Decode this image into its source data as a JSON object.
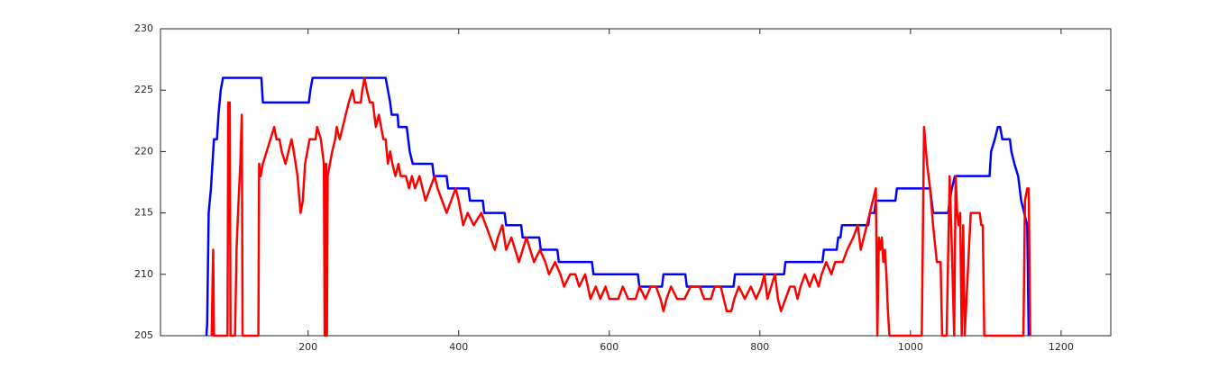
{
  "chart_data": {
    "type": "line",
    "xlim": [
      4,
      1266
    ],
    "ylim": [
      205,
      230
    ],
    "xticks": [
      200,
      400,
      600,
      800,
      1000,
      1200
    ],
    "yticks": [
      205,
      210,
      215,
      220,
      225,
      230
    ],
    "grid": false,
    "series": [
      {
        "color": "#0000ff",
        "x": [
          65,
          66,
          68,
          71,
          74,
          75,
          79,
          81,
          84,
          87,
          138,
          140,
          201,
          203,
          206,
          303,
          306,
          309,
          311,
          319,
          320,
          331,
          333,
          335,
          339,
          365,
          367,
          384,
          386,
          413,
          415,
          432,
          434,
          461,
          463,
          483,
          485,
          507,
          509,
          531,
          533,
          577,
          579,
          638,
          640,
          670,
          672,
          701,
          703,
          765,
          767,
          832,
          834,
          883,
          885,
          902,
          904,
          907,
          909,
          944,
          946,
          952,
          954,
          980,
          982,
          1026,
          1028,
          1030,
          1050,
          1052,
          1055,
          1059,
          1105,
          1107,
          1112,
          1116,
          1119,
          1122,
          1132,
          1134,
          1138,
          1143,
          1147,
          1151,
          1155,
          1157
        ],
        "values": [
          205,
          206,
          215,
          217,
          220,
          221,
          221,
          223,
          225,
          226,
          226,
          224,
          224,
          225,
          226,
          226,
          225,
          224,
          223,
          223,
          222,
          222,
          221,
          220,
          219,
          219,
          218,
          218,
          217,
          217,
          216,
          216,
          215,
          215,
          214,
          214,
          213,
          213,
          212,
          212,
          211,
          211,
          210,
          210,
          209,
          209,
          210,
          210,
          209,
          209,
          210,
          210,
          211,
          211,
          212,
          212,
          213,
          213,
          214,
          214,
          215,
          215,
          216,
          216,
          217,
          217,
          216,
          215,
          215,
          216,
          217,
          218,
          218,
          220,
          221,
          222,
          222,
          221,
          221,
          220,
          219,
          218,
          216,
          215,
          214,
          205
        ]
      },
      {
        "color": "#ff0000",
        "x": [
          72,
          73,
          74,
          75,
          93,
          94,
          96,
          97,
          103,
          105,
          107,
          110,
          112,
          113,
          134,
          135,
          137,
          140,
          145,
          150,
          155,
          158,
          162,
          165,
          170,
          174,
          178,
          181,
          186,
          190,
          193,
          196,
          199,
          202,
          210,
          212,
          217,
          221,
          222,
          223,
          224,
          225,
          226,
          229,
          232,
          236,
          238,
          242,
          246,
          250,
          254,
          259,
          262,
          270,
          272,
          275,
          278,
          282,
          286,
          290,
          294,
          297,
          300,
          303,
          306,
          309,
          312,
          316,
          320,
          323,
          330,
          334,
          338,
          342,
          348,
          352,
          356,
          362,
          368,
          372,
          378,
          384,
          390,
          396,
          400,
          406,
          412,
          420,
          430,
          436,
          442,
          448,
          452,
          458,
          463,
          470,
          475,
          480,
          490,
          495,
          500,
          508,
          515,
          520,
          528,
          535,
          540,
          548,
          555,
          560,
          568,
          575,
          582,
          588,
          595,
          600,
          612,
          618,
          625,
          635,
          640,
          648,
          655,
          662,
          668,
          672,
          676,
          682,
          690,
          700,
          708,
          720,
          726,
          735,
          740,
          748,
          752,
          756,
          762,
          766,
          772,
          780,
          788,
          795,
          802,
          806,
          810,
          815,
          820,
          824,
          828,
          834,
          840,
          846,
          850,
          854,
          860,
          866,
          872,
          878,
          882,
          888,
          895,
          900,
          910,
          916,
          924,
          930,
          934,
          938,
          942,
          946,
          950,
          954,
          956,
          958,
          960,
          962,
          964,
          966,
          968,
          970,
          972,
          1015,
          1018,
          1022,
          1026,
          1030,
          1035,
          1040,
          1042,
          1048,
          1052,
          1055,
          1058,
          1060,
          1062,
          1064,
          1066,
          1068,
          1070,
          1072,
          1080,
          1092,
          1094,
          1096,
          1098,
          1150,
          1152,
          1155,
          1157,
          1159
        ],
        "values": [
          205,
          209,
          212,
          205,
          205,
          224,
          224,
          205,
          205,
          212,
          215,
          219,
          223,
          205,
          205,
          219,
          218,
          219,
          220,
          221,
          222,
          221,
          221,
          220,
          219,
          220,
          221,
          220,
          218,
          215,
          216,
          219,
          220,
          221,
          221,
          222,
          221,
          219,
          205,
          205,
          219,
          205,
          218,
          219,
          220,
          221,
          222,
          221,
          222,
          223,
          224,
          225,
          224,
          224,
          225,
          226,
          225,
          224,
          224,
          222,
          223,
          222,
          221,
          221,
          219,
          220,
          219,
          218,
          219,
          218,
          218,
          217,
          218,
          217,
          218,
          217,
          216,
          217,
          218,
          217,
          216,
          215,
          216,
          217,
          216,
          214,
          215,
          214,
          215,
          214,
          213,
          212,
          213,
          214,
          212,
          213,
          212,
          211,
          213,
          212,
          211,
          212,
          211,
          210,
          211,
          210,
          209,
          210,
          210,
          209,
          210,
          208,
          209,
          208,
          209,
          208,
          208,
          209,
          208,
          208,
          209,
          208,
          209,
          209,
          208,
          207,
          208,
          209,
          208,
          208,
          209,
          209,
          208,
          208,
          209,
          209,
          208,
          207,
          207,
          208,
          209,
          208,
          209,
          208,
          209,
          210,
          208,
          209,
          210,
          208,
          207,
          208,
          209,
          209,
          208,
          209,
          210,
          209,
          210,
          209,
          210,
          211,
          210,
          211,
          211,
          212,
          213,
          214,
          212,
          213,
          214,
          215,
          216,
          217,
          205,
          213,
          212,
          213,
          211,
          212,
          210,
          207,
          205,
          205,
          222,
          219,
          217,
          214,
          211,
          211,
          205,
          205,
          218,
          212,
          205,
          218,
          215,
          214,
          215,
          205,
          214,
          205,
          215,
          215,
          214,
          214,
          205,
          205,
          216,
          217,
          217,
          205
        ]
      }
    ]
  }
}
